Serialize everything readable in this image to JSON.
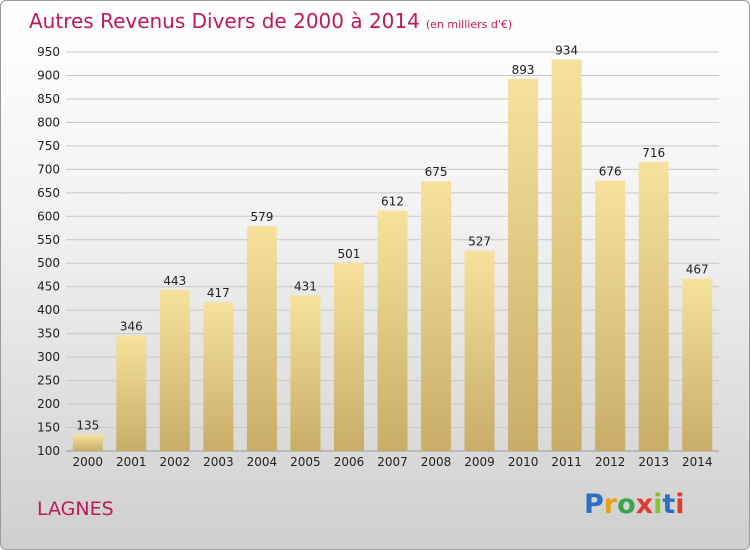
{
  "title": "Autres Revenus Divers de 2000 à 2014",
  "unit": "(en milliers d'€)",
  "commune": "LAGNES",
  "logo": {
    "text": "Proxiti",
    "letter_colors": [
      "#2f6fc2",
      "#e8a019",
      "#3aa64a",
      "#e23a2e",
      "#8cbf2c",
      "#2f6fc2",
      "#e23a2e"
    ]
  },
  "colors": {
    "title": "#c2185b",
    "bar_light": "#f6e29c",
    "bar_dark": "#c9ad66"
  },
  "chart_data": {
    "type": "bar",
    "categories": [
      "2000",
      "2001",
      "2002",
      "2003",
      "2004",
      "2005",
      "2006",
      "2007",
      "2008",
      "2009",
      "2010",
      "2011",
      "2012",
      "2013",
      "2014"
    ],
    "values": [
      135,
      346,
      443,
      417,
      579,
      431,
      501,
      612,
      675,
      527,
      893,
      934,
      676,
      716,
      467
    ],
    "ylim": [
      100,
      950
    ],
    "yticks": [
      100,
      150,
      200,
      250,
      300,
      350,
      400,
      450,
      500,
      550,
      600,
      650,
      700,
      750,
      800,
      850,
      900,
      950
    ],
    "grid": true,
    "title": "Autres Revenus Divers de 2000 à 2014",
    "xlabel": "",
    "ylabel": ""
  }
}
